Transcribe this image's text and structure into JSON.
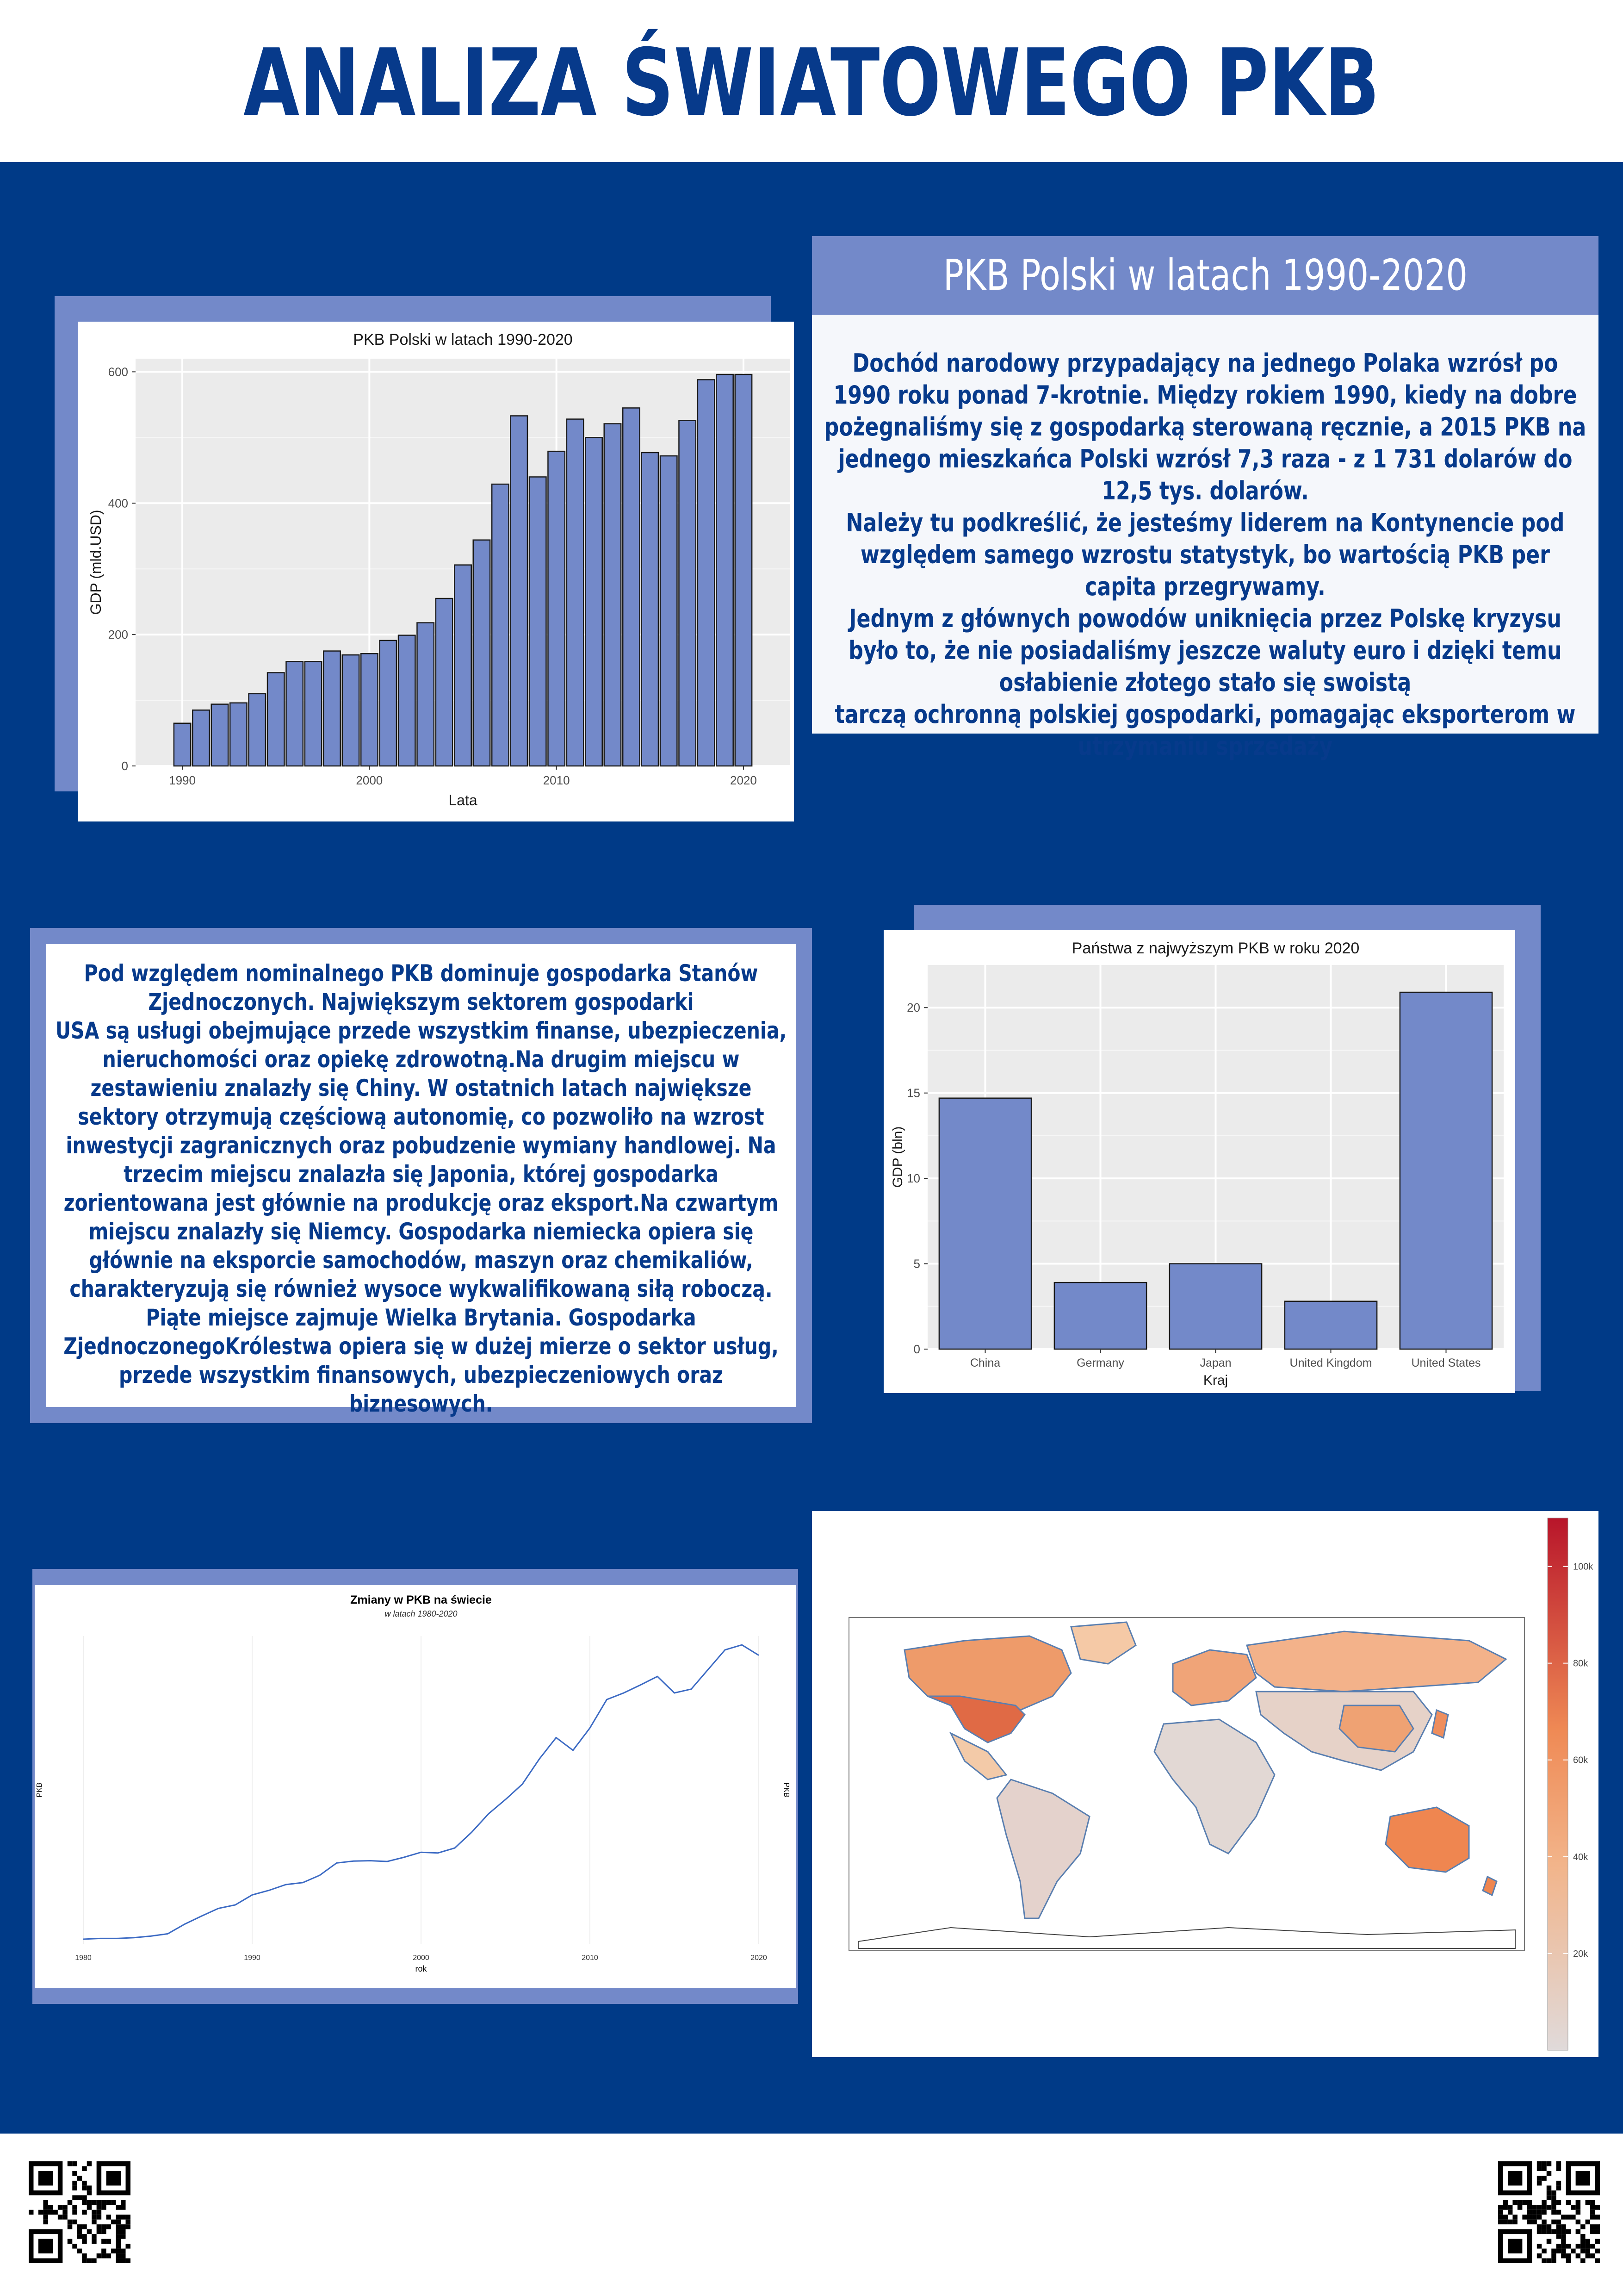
{
  "poster": {
    "title": "ANALIZA ŚWIATOWEGO PKB"
  },
  "section1": {
    "title": "PKB Polski w latach 1990-2020",
    "paragraphs": [
      "Dochód narodowy przypadający na jednego Polaka wzrósł po 1990 roku ponad 7-krotnie. Między rokiem 1990, kiedy na dobre pożegnaliśmy się z gospodarką sterowaną ręcznie,  a 2015 PKB na jednego mieszkańca Polski wzrósł 7,3 raza - z 1 731 dolarów do 12,5 tys.  dolarów.",
      "Należy tu podkreślić, że jesteśmy liderem na Kontynencie pod względem samego  wzrostu statystyk, bo wartością PKB per capita przegrywamy.",
      "Jednym z głównych powodów  uniknięcia przez Polskę kryzysu",
      "było to, że nie posiadaliśmy jeszcze waluty euro i  dzięki temu osłabienie złotego stało się swoistą",
      "tarczą ochronną polskiej gospodarki,  pomagając eksporterom w utrzymaniu sprzedaży"
    ]
  },
  "section2": {
    "paragraphs": [
      "Pod względem nominalnego PKB dominuje gospodarka Stanów Zjednoczonych. Największym sektorem gospodarki",
      "USA są usługi obejmujące przede wszystkim finanse, ubezpieczenia, nieruchomości oraz opiekę zdrowotną.Na drugim miejscu w zestawieniu znalazły się Chiny. W ostatnich latach największe sektory otrzymują częściową autonomię, co pozwoliło na wzrost inwestycji zagranicznych oraz pobudzenie wymiany handlowej. Na trzecim miejscu znalazła się Japonia, której gospodarka zorientowana jest głównie na produkcję oraz eksport.Na czwartym miejscu znalazły się Niemcy. Gospodarka niemiecka opiera się głównie na eksporcie samochodów, maszyn oraz chemikaliów, charakteryzują się również wysoce wykwalifikowaną siłą roboczą. Piąte miejsce zajmuje Wielka Brytania. Gospodarka ZjednoczonegoKrólestwa opiera się w dużej mierze o sektor usług, przede wszystkim finansowych, ubezpieczeniowych oraz biznesowych."
    ]
  },
  "colors": {
    "navy": "#003a87",
    "title_blue": "#073a8b",
    "accent": "#7389c9",
    "bar_fill": "#7389c9",
    "panel_bg": "#ebebeb",
    "line": "#3d6bc4"
  },
  "chart_data": [
    {
      "type": "bar",
      "title": "PKB Polski w latach 1990-2020",
      "xlabel": "Lata",
      "ylabel": "GDP (mld.USD)",
      "ylim": [
        0,
        620
      ],
      "yticks": [
        0,
        200,
        400,
        600
      ],
      "xticks": [
        1990,
        2000,
        2010,
        2020
      ],
      "x": [
        1990,
        1991,
        1992,
        1993,
        1994,
        1995,
        1996,
        1997,
        1998,
        1999,
        2000,
        2001,
        2002,
        2003,
        2004,
        2005,
        2006,
        2007,
        2008,
        2009,
        2010,
        2011,
        2012,
        2013,
        2014,
        2015,
        2016,
        2017,
        2018,
        2019,
        2020
      ],
      "values": [
        65,
        85,
        94,
        96,
        110,
        142,
        159,
        159,
        175,
        169,
        171,
        191,
        199,
        218,
        255,
        306,
        344,
        429,
        533,
        440,
        479,
        528,
        500,
        521,
        545,
        477,
        472,
        526,
        588,
        596,
        596
      ],
      "grid": true
    },
    {
      "type": "bar",
      "title": "Państwa z najwyższym PKB w roku 2020",
      "xlabel": "Kraj",
      "ylabel": "GDP (bln)",
      "categories": [
        "China",
        "Germany",
        "Japan",
        "United Kingdom",
        "United States"
      ],
      "values": [
        14.7,
        3.9,
        5.0,
        2.8,
        20.9
      ],
      "ylim": [
        0,
        22.5
      ],
      "yticks": [
        0,
        5,
        10,
        15,
        20
      ],
      "grid": true
    },
    {
      "type": "line",
      "title": "Zmiany w PKB na świecie",
      "subtitle": "w latach 1980-2020",
      "xlabel": "rok",
      "ylabel": "PKB",
      "ylabel_right": "PKB",
      "xticks": [
        1980,
        1990,
        2000,
        2010,
        2020
      ],
      "xlim": [
        1980,
        2020
      ],
      "x": [
        1980,
        1981,
        1982,
        1983,
        1984,
        1985,
        1986,
        1987,
        1988,
        1989,
        1990,
        1991,
        1992,
        1993,
        1994,
        1995,
        1996,
        1997,
        1998,
        1999,
        2000,
        2001,
        2002,
        2003,
        2004,
        2005,
        2006,
        2007,
        2008,
        2009,
        2010,
        2011,
        2012,
        2013,
        2014,
        2015,
        2016,
        2017,
        2018,
        2019,
        2020
      ],
      "values": [
        11.2,
        11.4,
        11.4,
        11.6,
        12.0,
        12.6,
        15.1,
        17.2,
        19.2,
        20.1,
        22.7,
        23.9,
        25.4,
        25.9,
        27.8,
        31.0,
        31.5,
        31.6,
        31.4,
        32.5,
        33.8,
        33.6,
        34.9,
        39.0,
        43.8,
        47.5,
        51.5,
        58.0,
        63.6,
        60.3,
        66.1,
        73.5,
        75.2,
        77.3,
        79.5,
        75.2,
        76.2,
        81.3,
        86.4,
        87.7,
        85.0
      ],
      "grid": true
    },
    {
      "type": "heatmap",
      "title": "",
      "legend_ticks": [
        "100k",
        "80k",
        "60k",
        "40k",
        "20k"
      ],
      "legend_range": [
        0,
        110000
      ],
      "colors": {
        "low": "#d9d9d9",
        "mid": "#f3a16b",
        "high": "#b2182b"
      },
      "legend_position": "right"
    }
  ],
  "qr": {
    "left": "qr-code-left",
    "right": "qr-code-right"
  }
}
